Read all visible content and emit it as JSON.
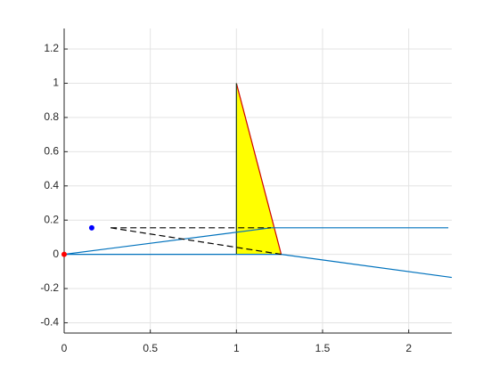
{
  "chart_data": {
    "type": "line",
    "xlim": [
      0,
      2.25
    ],
    "ylim": [
      -0.46,
      1.32
    ],
    "xticks": [
      0,
      0.5,
      1,
      1.5,
      2
    ],
    "yticks": [
      -0.4,
      -0.2,
      0,
      0.2,
      0.4,
      0.6,
      0.8,
      1,
      1.2
    ],
    "grid": true,
    "series": [
      {
        "kind": "fill",
        "color": "#ffff00",
        "x": [
          1,
          1,
          1.26
        ],
        "values": [
          0,
          1,
          0
        ]
      },
      {
        "kind": "line",
        "color": "#d00000",
        "x": [
          1,
          1.26
        ],
        "values": [
          1,
          0
        ]
      },
      {
        "kind": "line",
        "color": "#1a3a1a",
        "x": [
          1,
          1
        ],
        "values": [
          0,
          1
        ]
      },
      {
        "kind": "line",
        "color": "#0072bd",
        "x": [
          0,
          1.2,
          2.23
        ],
        "values": [
          0,
          0.155,
          0.155
        ]
      },
      {
        "kind": "line",
        "color": "#0072bd",
        "x": [
          0,
          1.26,
          2.25
        ],
        "values": [
          0,
          0,
          -0.135
        ]
      },
      {
        "kind": "dashed",
        "color": "#000000",
        "x": [
          0.27,
          1.2
        ],
        "values": [
          0.155,
          0.155
        ]
      },
      {
        "kind": "dashed",
        "color": "#000000",
        "x": [
          0.27,
          1.26
        ],
        "values": [
          0.155,
          0
        ]
      },
      {
        "kind": "marker",
        "color": "#0000ff",
        "x": [
          0.16
        ],
        "values": [
          0.155
        ]
      },
      {
        "kind": "marker",
        "color": "#ff0000",
        "x": [
          0
        ],
        "values": [
          0
        ]
      }
    ]
  }
}
